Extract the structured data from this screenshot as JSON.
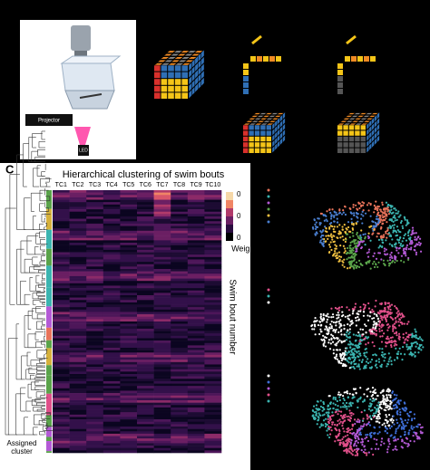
{
  "panel_a": {
    "projector_label": "Projector",
    "led_label": "LED"
  },
  "panel_c": {
    "label": "C",
    "title": "Hierarchical clustering of swim bouts",
    "columns": [
      "TC1",
      "TC2",
      "TC3",
      "TC4",
      "TC5",
      "TC6",
      "TC7",
      "TC8",
      "TC9",
      "TC10"
    ],
    "colorbar_ticks": [
      "0",
      "0",
      "0"
    ],
    "colorbar_label": "Weight",
    "y_label": "Swim bout number",
    "cluster_label": [
      "Assigned",
      "cluster"
    ]
  }
}
